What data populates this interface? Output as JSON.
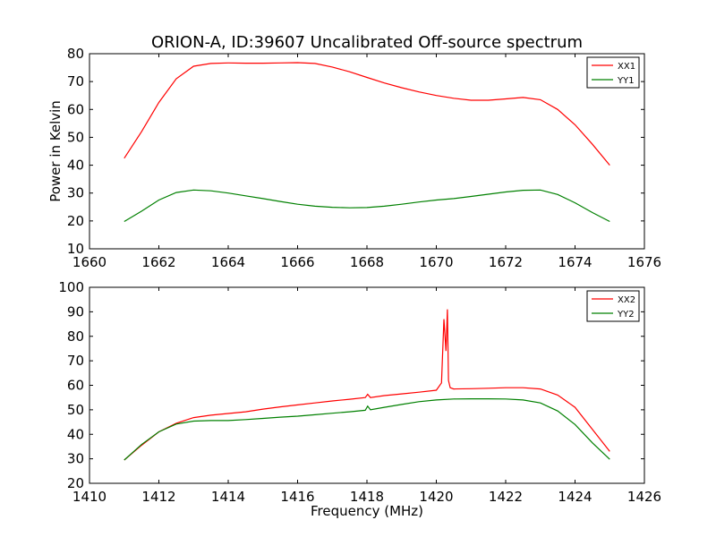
{
  "figure": {
    "title": "ORION-A, ID:39607 Uncalibrated Off-source spectrum",
    "background": "#ffffff"
  },
  "chart_data": [
    {
      "type": "line",
      "title": "ORION-A, ID:39607 Uncalibrated Off-source spectrum",
      "xlabel": "",
      "ylabel": "Power in Kelvin",
      "xlim": [
        1660,
        1676
      ],
      "ylim": [
        10,
        80
      ],
      "xticks": [
        1660,
        1662,
        1664,
        1666,
        1668,
        1670,
        1672,
        1674,
        1676
      ],
      "yticks": [
        10,
        20,
        30,
        40,
        50,
        60,
        70,
        80
      ],
      "grid": false,
      "legend": "top-right",
      "series": [
        {
          "name": "XX1",
          "color": "#ff0000",
          "x": [
            1661.0,
            1661.5,
            1662.0,
            1662.5,
            1663.0,
            1663.5,
            1664.0,
            1664.5,
            1665.0,
            1665.5,
            1666.0,
            1666.5,
            1667.0,
            1667.5,
            1668.0,
            1668.5,
            1669.0,
            1669.5,
            1670.0,
            1670.5,
            1671.0,
            1671.5,
            1672.0,
            1672.5,
            1673.0,
            1673.5,
            1674.0,
            1674.5,
            1675.0
          ],
          "y": [
            42.5,
            52.0,
            62.5,
            71.0,
            75.5,
            76.5,
            76.7,
            76.6,
            76.6,
            76.7,
            76.8,
            76.5,
            75.2,
            73.5,
            71.5,
            69.5,
            67.8,
            66.3,
            65.0,
            64.0,
            63.3,
            63.3,
            63.8,
            64.3,
            63.5,
            60.0,
            54.5,
            47.5,
            40.0
          ]
        },
        {
          "name": "YY1",
          "color": "#008000",
          "x": [
            1661.0,
            1661.5,
            1662.0,
            1662.5,
            1663.0,
            1663.5,
            1664.0,
            1664.5,
            1665.0,
            1665.5,
            1666.0,
            1666.5,
            1667.0,
            1667.5,
            1668.0,
            1668.5,
            1669.0,
            1669.5,
            1670.0,
            1670.5,
            1671.0,
            1671.5,
            1672.0,
            1672.5,
            1673.0,
            1673.5,
            1674.0,
            1674.5,
            1675.0
          ],
          "y": [
            19.8,
            23.5,
            27.5,
            30.2,
            31.1,
            30.8,
            30.0,
            29.0,
            28.0,
            27.0,
            26.0,
            25.3,
            24.9,
            24.7,
            24.8,
            25.3,
            26.0,
            26.8,
            27.5,
            28.0,
            28.8,
            29.6,
            30.4,
            31.0,
            31.1,
            29.5,
            26.5,
            23.0,
            19.8
          ]
        }
      ]
    },
    {
      "type": "line",
      "title": "",
      "xlabel": "Frequency (MHz)",
      "ylabel": "",
      "xlim": [
        1410,
        1426
      ],
      "ylim": [
        20,
        100
      ],
      "xticks": [
        1410,
        1412,
        1414,
        1416,
        1418,
        1420,
        1422,
        1424,
        1426
      ],
      "yticks": [
        20,
        30,
        40,
        50,
        60,
        70,
        80,
        90,
        100
      ],
      "grid": false,
      "legend": "top-right",
      "series": [
        {
          "name": "XX2",
          "color": "#ff0000",
          "x": [
            1411.0,
            1411.5,
            1412.0,
            1412.5,
            1413.0,
            1413.5,
            1414.0,
            1414.5,
            1415.0,
            1415.5,
            1416.0,
            1416.5,
            1417.0,
            1417.5,
            1417.95,
            1418.02,
            1418.1,
            1418.5,
            1419.0,
            1419.5,
            1420.0,
            1420.15,
            1420.22,
            1420.28,
            1420.32,
            1420.35,
            1420.4,
            1420.5,
            1421.0,
            1421.5,
            1422.0,
            1422.5,
            1423.0,
            1423.5,
            1424.0,
            1424.5,
            1425.0
          ],
          "y": [
            29.5,
            35.5,
            41.0,
            44.5,
            46.8,
            47.8,
            48.5,
            49.2,
            50.3,
            51.2,
            52.0,
            52.8,
            53.6,
            54.3,
            55.0,
            56.3,
            55.0,
            55.8,
            56.5,
            57.2,
            58.0,
            61.0,
            87.0,
            74.0,
            91.0,
            62.0,
            59.0,
            58.5,
            58.6,
            58.8,
            59.0,
            59.0,
            58.5,
            56.0,
            51.0,
            42.0,
            33.0
          ]
        },
        {
          "name": "YY2",
          "color": "#008000",
          "x": [
            1411.0,
            1411.5,
            1412.0,
            1412.5,
            1413.0,
            1413.5,
            1414.0,
            1414.5,
            1415.0,
            1415.5,
            1416.0,
            1416.5,
            1417.0,
            1417.5,
            1417.95,
            1418.02,
            1418.1,
            1418.5,
            1419.0,
            1419.5,
            1420.0,
            1420.5,
            1421.0,
            1421.5,
            1422.0,
            1422.5,
            1423.0,
            1423.5,
            1424.0,
            1424.5,
            1425.0
          ],
          "y": [
            29.5,
            35.8,
            41.0,
            44.2,
            45.4,
            45.6,
            45.6,
            46.0,
            46.5,
            47.0,
            47.4,
            48.0,
            48.6,
            49.2,
            49.8,
            51.5,
            50.0,
            51.0,
            52.2,
            53.3,
            54.0,
            54.4,
            54.5,
            54.5,
            54.4,
            54.0,
            52.8,
            49.5,
            44.0,
            36.5,
            29.8
          ]
        }
      ]
    }
  ]
}
